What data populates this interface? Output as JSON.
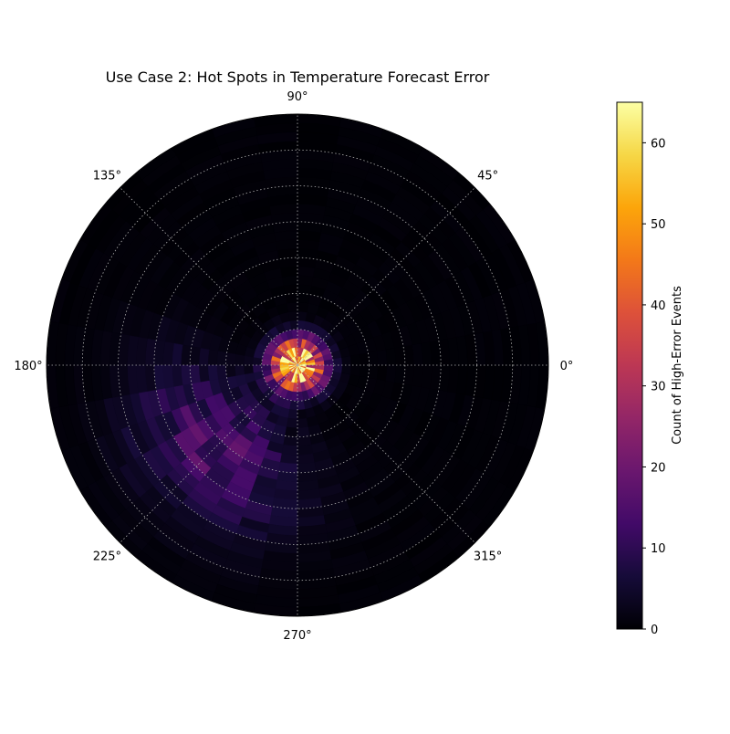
{
  "chart_data": {
    "type": "heatmap",
    "projection": "polar",
    "title": "Use Case 2: Hot Spots in Temperature Forecast Error",
    "angle_ticks": [
      {
        "deg": 0,
        "label": "0°"
      },
      {
        "deg": 45,
        "label": "45°"
      },
      {
        "deg": 90,
        "label": "90°"
      },
      {
        "deg": 135,
        "label": "135°"
      },
      {
        "deg": 180,
        "label": "180°"
      },
      {
        "deg": 225,
        "label": "225°"
      },
      {
        "deg": 270,
        "label": "270°"
      },
      {
        "deg": 315,
        "label": "315°"
      }
    ],
    "radial_range": [
      0,
      7
    ],
    "radial_grid": [
      1,
      2,
      3,
      4,
      5,
      6,
      7
    ],
    "radial_tick_labels": [],
    "grid": true,
    "angle_bins": 36,
    "radial_bins": 28,
    "colormap": "inferno",
    "colorbar": {
      "label": "Count of High-Error Events",
      "range": [
        0,
        65
      ],
      "ticks": [
        0,
        10,
        20,
        30,
        40,
        50,
        60
      ]
    },
    "hot_spots": [
      {
        "name": "center",
        "angle_deg": 0,
        "radius": 0.1,
        "peak_count": 60,
        "angle_spread_deg": 360,
        "radius_spread": 0.45
      },
      {
        "name": "southwest-arc",
        "angle_deg": 225,
        "radius": 3.3,
        "peak_count": 14,
        "angle_spread_deg": 30,
        "radius_spread": 1.3
      }
    ]
  }
}
